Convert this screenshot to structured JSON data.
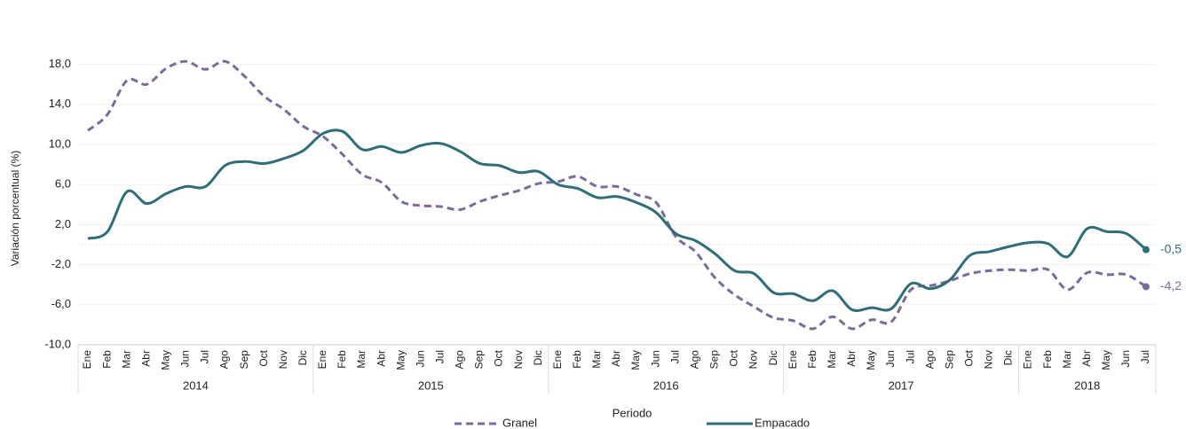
{
  "chart_data": {
    "type": "line",
    "y_label": "Variación porcentual (%)",
    "x_label": "Periodo",
    "categories": [
      "Ene",
      "Feb",
      "Mar",
      "Abr",
      "May",
      "Jun",
      "Jul",
      "Ago",
      "Sep",
      "Oct",
      "Nov",
      "Dic",
      "Ene",
      "Feb",
      "Mar",
      "Abr",
      "May",
      "Jun",
      "Jul",
      "Ago",
      "Sep",
      "Oct",
      "Nov",
      "Dic",
      "Ene",
      "Feb",
      "Mar",
      "Abr",
      "May",
      "Jun",
      "Jul",
      "Ago",
      "Sep",
      "Oct",
      "Nov",
      "Dic",
      "Ene",
      "Feb",
      "Mar",
      "Abr",
      "May",
      "Jun",
      "Jul",
      "Ago",
      "Sep",
      "Oct",
      "Nov",
      "Dic",
      "Ene",
      "Feb",
      "Mar",
      "Abr",
      "May",
      "Jun",
      "Jul"
    ],
    "category_groups": [
      "2014",
      "2014",
      "2014",
      "2014",
      "2014",
      "2014",
      "2014",
      "2014",
      "2014",
      "2014",
      "2014",
      "2014",
      "2015",
      "2015",
      "2015",
      "2015",
      "2015",
      "2015",
      "2015",
      "2015",
      "2015",
      "2015",
      "2015",
      "2015",
      "2016",
      "2016",
      "2016",
      "2016",
      "2016",
      "2016",
      "2016",
      "2016",
      "2016",
      "2016",
      "2016",
      "2016",
      "2017",
      "2017",
      "2017",
      "2017",
      "2017",
      "2017",
      "2017",
      "2017",
      "2017",
      "2017",
      "2017",
      "2017",
      "2018",
      "2018",
      "2018",
      "2018",
      "2018",
      "2018",
      "2018"
    ],
    "series": [
      {
        "name": "Granel",
        "color": "#7b6a9e",
        "dashed": true,
        "values": [
          11.4,
          13,
          16.4,
          16,
          17.6,
          18.3,
          17.5,
          18.3,
          16.8,
          14.8,
          13.5,
          11.8,
          10.8,
          9,
          7,
          6.2,
          4.3,
          3.9,
          3.8,
          3.5,
          4.3,
          4.9,
          5.4,
          6.1,
          6.3,
          6.8,
          5.8,
          5.8,
          5,
          4.2,
          0.8,
          -0.7,
          -3.3,
          -5,
          -6.2,
          -7.3,
          -7.6,
          -8.4,
          -7.2,
          -8.4,
          -7.5,
          -7.7,
          -4.5,
          -4.1,
          -3.6,
          -2.9,
          -2.6,
          -2.5,
          -2.6,
          -2.5,
          -4.5,
          -2.8,
          -3,
          -3,
          -4.2
        ],
        "value_labels": [
          null,
          null,
          null,
          null,
          null,
          null,
          null,
          null,
          null,
          null,
          null,
          null,
          null,
          null,
          null,
          null,
          null,
          null,
          null,
          null,
          null,
          null,
          null,
          null,
          null,
          null,
          null,
          null,
          null,
          null,
          null,
          null,
          null,
          null,
          null,
          null,
          null,
          null,
          null,
          null,
          null,
          null,
          null,
          null,
          null,
          null,
          null,
          null,
          null,
          null,
          null,
          null,
          null,
          null,
          "-4,2"
        ]
      },
      {
        "name": "Empacado",
        "color": "#2e6e7a",
        "dashed": false,
        "values": [
          0.6,
          1.3,
          5.3,
          4.1,
          5.1,
          5.8,
          5.8,
          7.9,
          8.3,
          8.1,
          8.6,
          9.4,
          11.1,
          11.3,
          9.5,
          9.8,
          9.2,
          9.9,
          10.1,
          9.3,
          8.1,
          7.9,
          7.2,
          7.3,
          6,
          5.6,
          4.7,
          4.8,
          4.2,
          3.2,
          1.1,
          0.4,
          -0.9,
          -2.6,
          -2.9,
          -4.8,
          -4.9,
          -5.6,
          -4.6,
          -6.5,
          -6.3,
          -6.4,
          -3.9,
          -4.4,
          -3.5,
          -1.1,
          -0.7,
          -0.2,
          0.2,
          0.1,
          -1.2,
          1.6,
          1.3,
          1.1,
          -0.5
        ],
        "value_labels": [
          null,
          null,
          null,
          null,
          null,
          null,
          null,
          null,
          null,
          null,
          null,
          null,
          null,
          null,
          null,
          null,
          null,
          null,
          null,
          null,
          null,
          null,
          null,
          null,
          null,
          null,
          null,
          null,
          null,
          null,
          null,
          null,
          null,
          null,
          null,
          null,
          null,
          null,
          null,
          null,
          null,
          null,
          null,
          null,
          null,
          null,
          null,
          null,
          null,
          null,
          null,
          null,
          null,
          null,
          "-0,5"
        ]
      }
    ],
    "ylim": [
      -10,
      20
    ],
    "yticks": [
      {
        "value": -10,
        "label": "-10,0"
      },
      {
        "value": -6,
        "label": "-6,0"
      },
      {
        "value": -2,
        "label": "-2,0"
      },
      {
        "value": 2,
        "label": "2,0"
      },
      {
        "value": 6,
        "label": "6,0"
      },
      {
        "value": 10,
        "label": "10,0"
      },
      {
        "value": 14,
        "label": "14,0"
      },
      {
        "value": 18,
        "label": "18,0"
      }
    ],
    "grid": true,
    "legend": "bottom"
  }
}
